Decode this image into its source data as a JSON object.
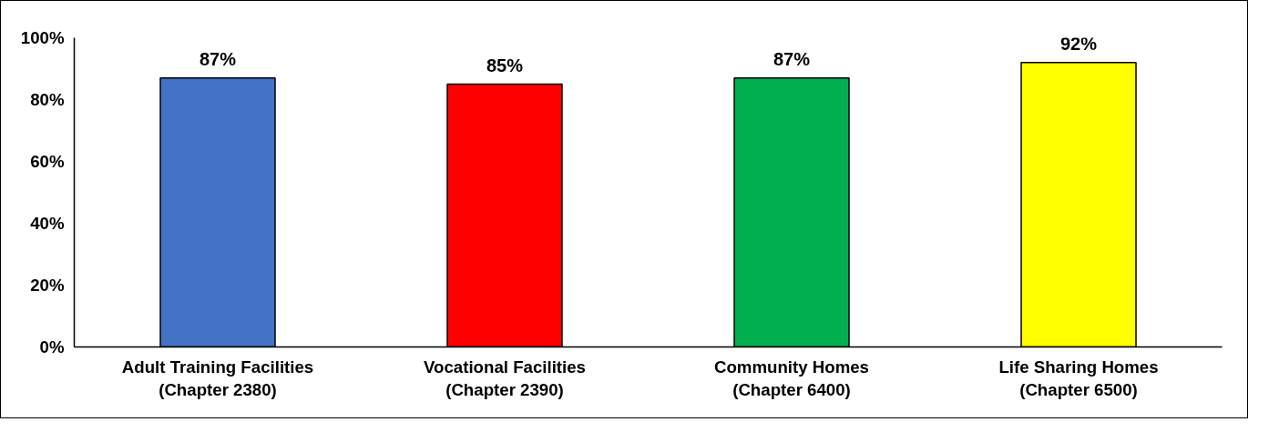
{
  "chart_data": {
    "type": "bar",
    "categories": [
      "Adult Training Facilities\n(Chapter 2380)",
      "Vocational Facilities\n(Chapter 2390)",
      "Community Homes\n(Chapter 6400)",
      "Life Sharing Homes\n(Chapter 6500)"
    ],
    "values": [
      87,
      85,
      87,
      92
    ],
    "colors": [
      "#4472c4",
      "#ff0000",
      "#00b050",
      "#ffff00"
    ],
    "value_labels": [
      "87%",
      "85%",
      "87%",
      "92%"
    ],
    "ylim": [
      0,
      100
    ],
    "yticks": [
      {
        "value": 0,
        "label": "0%"
      },
      {
        "value": 20,
        "label": "20%"
      },
      {
        "value": 40,
        "label": "40%"
      },
      {
        "value": 60,
        "label": "60%"
      },
      {
        "value": 80,
        "label": "80%"
      },
      {
        "value": 100,
        "label": "100%"
      }
    ],
    "grid": false
  }
}
